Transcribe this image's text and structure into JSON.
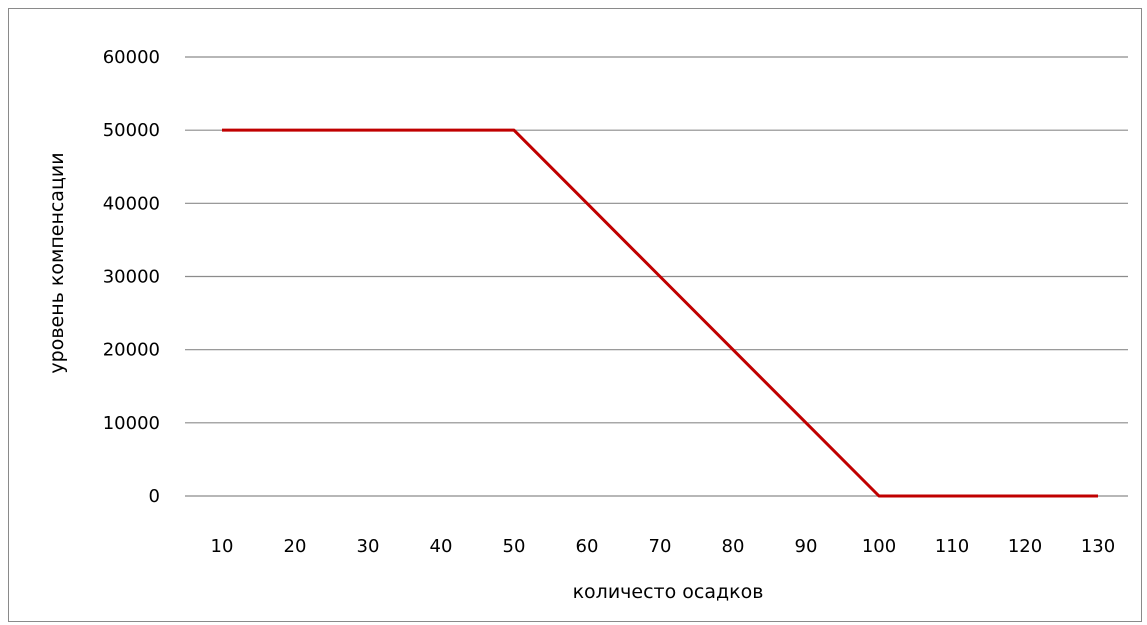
{
  "chart_data": {
    "type": "line",
    "title": "",
    "xlabel": "количесто осадков",
    "ylabel": "уровень компенсации",
    "categories": [
      "10",
      "20",
      "30",
      "40",
      "50",
      "60",
      "70",
      "80",
      "90",
      "100",
      "110",
      "120",
      "130"
    ],
    "series": [
      {
        "values": [
          50000,
          50000,
          50000,
          50000,
          50000,
          40000,
          30000,
          20000,
          10000,
          0,
          0,
          0,
          0
        ],
        "color": "#c00000"
      }
    ],
    "ylim": [
      0,
      60000
    ],
    "yticks": [
      "0",
      "10000",
      "20000",
      "30000",
      "40000",
      "50000",
      "60000"
    ],
    "grid": true,
    "legend": "none"
  }
}
